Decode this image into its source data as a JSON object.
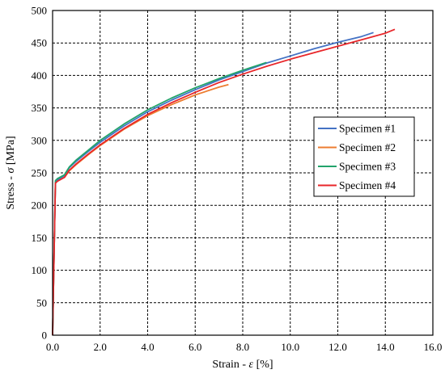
{
  "chart_data": {
    "type": "line",
    "xlabel": {
      "prefix": "Strain - ",
      "symbol": "ε",
      "suffix": " [%]"
    },
    "ylabel": {
      "prefix": "Stress - ",
      "symbol": "σ",
      "suffix": " [MPa]"
    },
    "xlim": [
      0,
      16
    ],
    "ylim": [
      0,
      500
    ],
    "x_ticks": [
      0,
      2,
      4,
      6,
      8,
      10,
      12,
      14,
      16
    ],
    "x_tick_labels": [
      "0.0",
      "2.0",
      "4.0",
      "6.0",
      "8.0",
      "10.0",
      "12.0",
      "14.0",
      "16.0"
    ],
    "y_ticks": [
      0,
      50,
      100,
      150,
      200,
      250,
      300,
      350,
      400,
      450,
      500
    ],
    "y_tick_labels": [
      "0",
      "50",
      "100",
      "150",
      "200",
      "250",
      "300",
      "350",
      "400",
      "450",
      "500"
    ],
    "grid": true,
    "grid_style": "dashed",
    "legend_position": "right",
    "series": [
      {
        "name": "Specimen #1",
        "color": "#4472C4",
        "x": [
          0,
          0.12,
          0.2,
          0.5,
          0.7,
          1.0,
          1.5,
          2.0,
          3.0,
          4.0,
          5.0,
          6.0,
          7.0,
          8.0,
          9.0,
          10.0,
          11.0,
          12.0,
          13.0,
          13.5
        ],
        "y": [
          0,
          236,
          239,
          246,
          258,
          268,
          283,
          297,
          322,
          344,
          362,
          378,
          393,
          406,
          419,
          430,
          441,
          451,
          460,
          466
        ]
      },
      {
        "name": "Specimen #2",
        "color": "#ED7D31",
        "x": [
          0,
          0.12,
          0.2,
          0.5,
          0.7,
          1.0,
          1.5,
          2.0,
          3.0,
          4.0,
          5.0,
          6.0,
          7.0,
          7.4
        ],
        "y": [
          0,
          235,
          238,
          243,
          253,
          263,
          278,
          292,
          317,
          338,
          355,
          370,
          382,
          386
        ]
      },
      {
        "name": "Specimen #3",
        "color": "#22A46B",
        "x": [
          0,
          0.12,
          0.2,
          0.5,
          0.7,
          1.0,
          1.5,
          2.0,
          3.0,
          4.0,
          5.0,
          6.0,
          7.0,
          8.0,
          9.0
        ],
        "y": [
          0,
          238,
          241,
          247,
          259,
          270,
          285,
          300,
          325,
          347,
          365,
          381,
          395,
          408,
          420
        ]
      },
      {
        "name": "Specimen #4",
        "color": "#E8262A",
        "x": [
          0,
          0.12,
          0.2,
          0.5,
          0.7,
          1.0,
          1.5,
          2.0,
          3.0,
          4.0,
          5.0,
          6.0,
          7.0,
          8.0,
          9.0,
          10.0,
          11.0,
          12.0,
          13.0,
          14.0,
          14.4
        ],
        "y": [
          0,
          234,
          237,
          243,
          254,
          264,
          279,
          293,
          318,
          340,
          358,
          374,
          389,
          402,
          414,
          425,
          435,
          445,
          455,
          465,
          471
        ]
      }
    ]
  }
}
